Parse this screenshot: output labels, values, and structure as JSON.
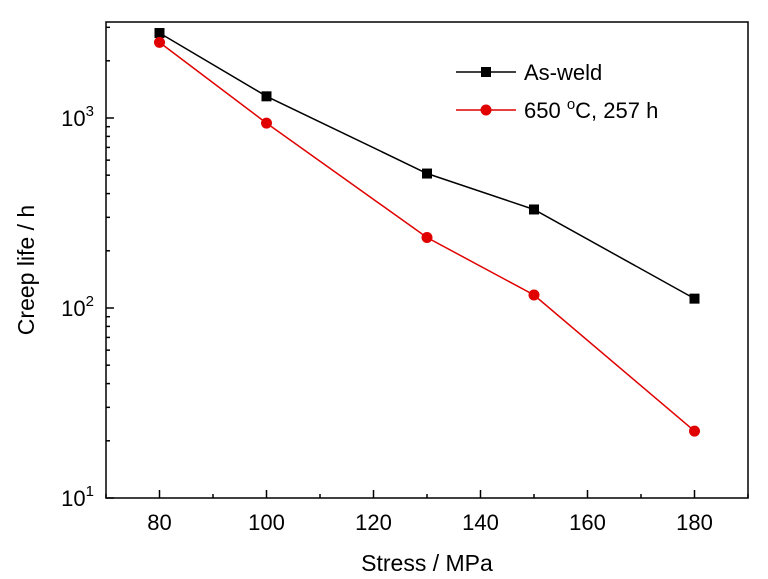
{
  "chart_data": {
    "type": "line",
    "xlabel": "Stress / MPa",
    "ylabel": "Creep life / h",
    "x": [
      80,
      100,
      130,
      150,
      180
    ],
    "xlim": [
      70,
      190
    ],
    "xticks": [
      80,
      100,
      120,
      140,
      160,
      180
    ],
    "ylim": [
      10,
      3200
    ],
    "yscale": "log",
    "yticks": [
      {
        "value": 10,
        "base": "10",
        "exp": "1"
      },
      {
        "value": 100,
        "base": "10",
        "exp": "2"
      },
      {
        "value": 1000,
        "base": "10",
        "exp": "3"
      }
    ],
    "grid": false,
    "legend_position": "top-right",
    "series": [
      {
        "name": "As-weld",
        "values": [
          2800,
          1300,
          510,
          330,
          112
        ],
        "color": "#000000",
        "marker": "square"
      },
      {
        "name_parts": {
          "pre": "650 ",
          "sup": "o",
          "post": "C, 257 h"
        },
        "values": [
          2500,
          940,
          235,
          117,
          22.5
        ],
        "color": "#e00000",
        "marker": "circle"
      }
    ]
  }
}
